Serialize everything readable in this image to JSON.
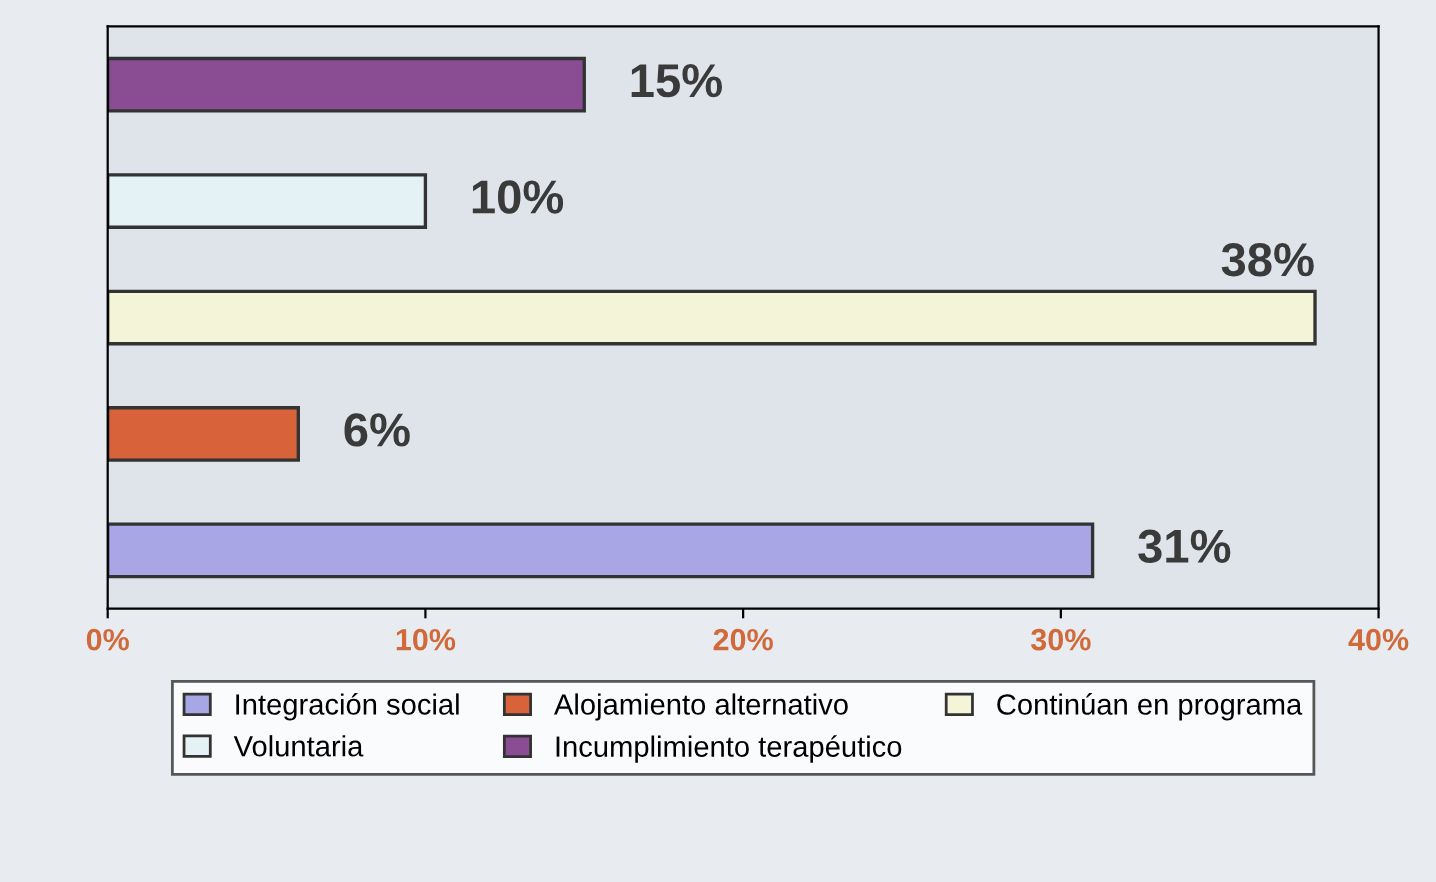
{
  "chart_data": {
    "type": "bar",
    "orientation": "horizontal",
    "categories": [
      null,
      null,
      null,
      null,
      null
    ],
    "series": [
      {
        "name": "Integración social",
        "color": "#a9a6e6",
        "values": [
          null,
          null,
          null,
          null,
          31
        ],
        "value_labels": [
          null,
          null,
          null,
          null,
          "31%"
        ]
      },
      {
        "name": "Alojamiento alternativo",
        "color": "#d8623a",
        "values": [
          null,
          null,
          null,
          6,
          null
        ],
        "value_labels": [
          null,
          null,
          null,
          "6%",
          null
        ]
      },
      {
        "name": "Continúan en programa",
        "color": "#f4f4d8",
        "values": [
          null,
          null,
          38,
          null,
          null
        ],
        "value_labels": [
          null,
          null,
          "38%",
          null,
          null
        ]
      },
      {
        "name": "Voluntaria",
        "color": "#e4f1f5",
        "values": [
          null,
          10,
          null,
          null,
          null
        ],
        "value_labels": [
          null,
          "10%",
          null,
          null,
          null
        ]
      },
      {
        "name": "Incumplimiento terapéutico",
        "color": "#8a4d94",
        "values": [
          15,
          null,
          null,
          null,
          null
        ],
        "value_labels": [
          "15%",
          null,
          null,
          null,
          null
        ]
      }
    ],
    "xlim": [
      0,
      40
    ],
    "xticks": [
      {
        "value": 0,
        "label": "0%"
      },
      {
        "value": 10,
        "label": "10%"
      },
      {
        "value": 20,
        "label": "20%"
      },
      {
        "value": 30,
        "label": "30%"
      },
      {
        "value": 40,
        "label": "40%"
      }
    ],
    "legend": "bottom",
    "grid": false
  }
}
